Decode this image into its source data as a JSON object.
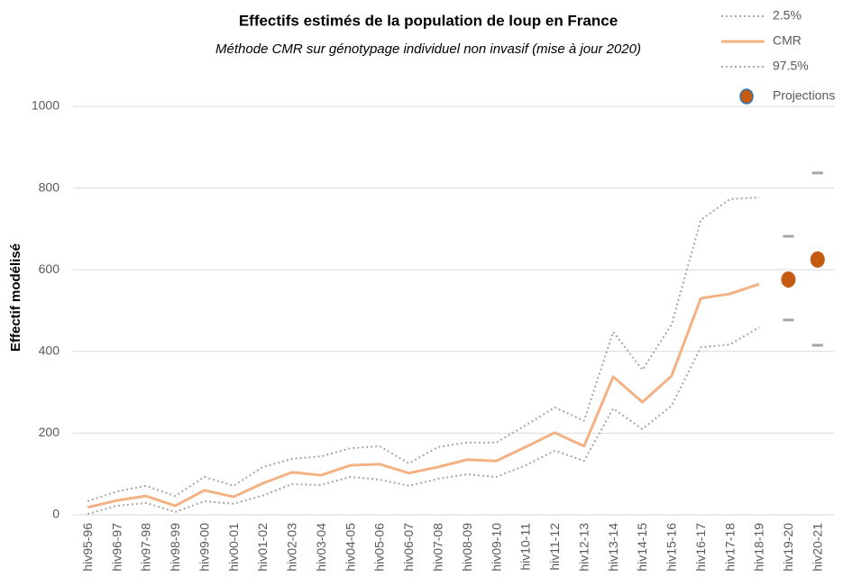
{
  "chart_data": {
    "type": "line",
    "title": "Effectifs estimés de la population  de loup  en France",
    "subtitle": "Méthode CMR sur génotypage individuel non invasif (mise à jour 2020)",
    "y_label": "Effectif modélisé",
    "categories": [
      "hiv95-96",
      "hiv96-97",
      "hiv97-98",
      "hiv98-99",
      "hiv99-00",
      "hiv00-01",
      "hiv01-02",
      "hiv02-03",
      "hiv03-04",
      "hiv04-05",
      "hiv05-06",
      "hiv06-07",
      "hiv07-08",
      "hiv08-09",
      "hiv09-10",
      "hiv10-11",
      "hiv11-12",
      "hiv12-13",
      "hiv13-14",
      "hiv14-15",
      "hiv15-16",
      "hiv16-17",
      "hiv17-18",
      "hiv18-19",
      "hiv19-20",
      "hiv20-21"
    ],
    "series": [
      {
        "name": "2.5%",
        "color": "#a6a6a6",
        "style": "dotted",
        "values": [
          2,
          22,
          29,
          7,
          33,
          27,
          47,
          75,
          73,
          93,
          86,
          71,
          88,
          99,
          93,
          121,
          157,
          132,
          260,
          210,
          267,
          410,
          417,
          459,
          null,
          null
        ]
      },
      {
        "name": "CMR",
        "color": "#f4b183",
        "style": "solid",
        "values": [
          18,
          35,
          46,
          22,
          60,
          44,
          77,
          104,
          97,
          121,
          124,
          102,
          117,
          135,
          132,
          166,
          201,
          168,
          338,
          276,
          340,
          530,
          541,
          565,
          null,
          null
        ]
      },
      {
        "name": "97.5%",
        "color": "#a6a6a6",
        "style": "dotted",
        "values": [
          33,
          57,
          71,
          46,
          93,
          71,
          117,
          137,
          143,
          163,
          168,
          126,
          166,
          177,
          177,
          219,
          263,
          230,
          448,
          355,
          466,
          722,
          773,
          777,
          null,
          null
        ]
      },
      {
        "name": "Projections",
        "color": "#c55a11",
        "style": "marker",
        "range_color": "#a6a6a6",
        "values": [
          null,
          null,
          null,
          null,
          null,
          null,
          null,
          null,
          null,
          null,
          null,
          null,
          null,
          null,
          null,
          null,
          null,
          null,
          null,
          null,
          null,
          null,
          null,
          null,
          576,
          625
        ],
        "low": [
          null,
          null,
          null,
          null,
          null,
          null,
          null,
          null,
          null,
          null,
          null,
          null,
          null,
          null,
          null,
          null,
          null,
          null,
          null,
          null,
          null,
          null,
          null,
          null,
          477,
          415
        ],
        "high": [
          null,
          null,
          null,
          null,
          null,
          null,
          null,
          null,
          null,
          null,
          null,
          null,
          null,
          null,
          null,
          null,
          null,
          null,
          null,
          null,
          null,
          null,
          null,
          null,
          682,
          837
        ]
      }
    ],
    "ylim": [
      0,
      1000
    ],
    "yticks": [
      0,
      200,
      400,
      600,
      800,
      1000
    ],
    "grid": true,
    "legend": "top-right"
  }
}
